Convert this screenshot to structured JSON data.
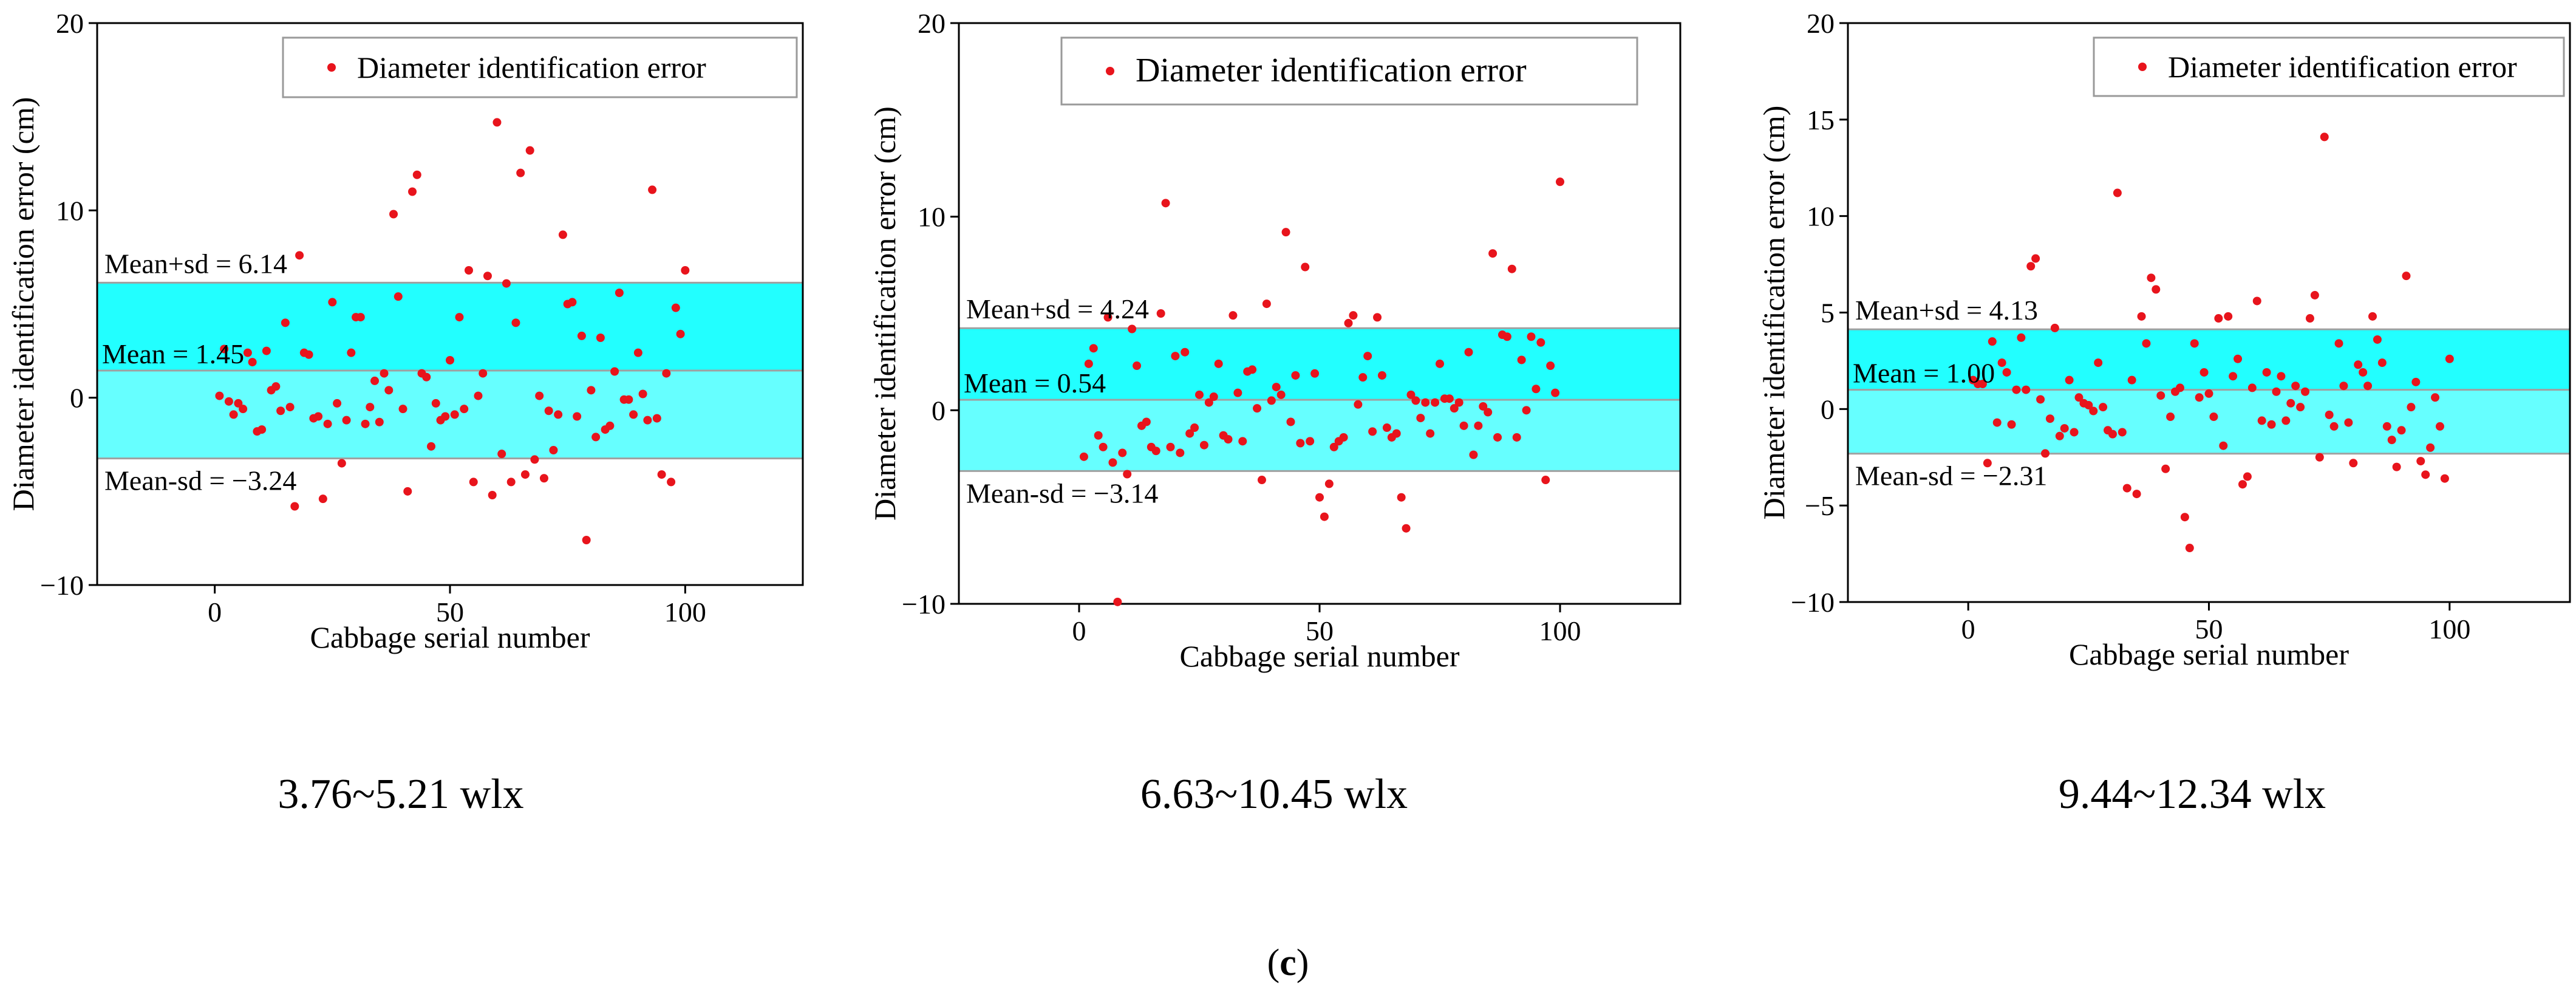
{
  "figure_label": {
    "open": "(",
    "letter": "c",
    "close": ")"
  },
  "colors": {
    "point": "#e8141c",
    "band_upper": "#22ffff",
    "band_lower": "#66ffff",
    "line": "#a0a0a0",
    "axis": "#000000"
  },
  "chart_data": [
    {
      "type": "scatter",
      "caption": "3.76~5.21 wlx",
      "xlabel": "Cabbage serial number",
      "ylabel": "Diameter identification error (cm)",
      "legend": "Diameter identification error",
      "legend_position": "top-right",
      "xlim": [
        -25,
        125
      ],
      "ylim": [
        -10,
        20
      ],
      "xticks": [
        0,
        50,
        100
      ],
      "yticks": [
        -10,
        0,
        10,
        20
      ],
      "ytick_labels": [
        "−10",
        "0",
        "10",
        "20"
      ],
      "mean": 1.45,
      "upper": 6.14,
      "lower": -3.24,
      "mean_label": "Mean = 1.45",
      "upper_label": "Mean+sd = 6.14",
      "lower_label": "Mean-sd = −3.24",
      "x": [
        1,
        2,
        3,
        4,
        5,
        6,
        7,
        8,
        9,
        10,
        11,
        12,
        13,
        14,
        15,
        16,
        17,
        18,
        19,
        20,
        21,
        22,
        23,
        24,
        25,
        26,
        27,
        28,
        29,
        30,
        31,
        32,
        33,
        34,
        35,
        36,
        37,
        38,
        39,
        40,
        41,
        42,
        43,
        44,
        45,
        46,
        47,
        48,
        49,
        50,
        51,
        52,
        53,
        54,
        55,
        56,
        57,
        58,
        59,
        60,
        61,
        62,
        63,
        64,
        65,
        66,
        67,
        68,
        69,
        70,
        71,
        72,
        73,
        74,
        75,
        76,
        77,
        78,
        79,
        80,
        81,
        82,
        83,
        84,
        85,
        86,
        87,
        88,
        89,
        90,
        91,
        92,
        93,
        94,
        95,
        96,
        97,
        98,
        99,
        100
      ],
      "y": [
        0.1,
        2.6,
        -0.2,
        -0.9,
        -0.3,
        -0.6,
        2.4,
        1.9,
        -1.8,
        -1.7,
        2.5,
        0.4,
        0.6,
        -0.7,
        4.0,
        -0.5,
        -5.8,
        7.6,
        2.4,
        2.3,
        -1.1,
        -1.0,
        -5.4,
        -1.4,
        5.1,
        -0.3,
        -3.5,
        -1.2,
        2.4,
        4.3,
        4.3,
        -1.4,
        -0.5,
        0.9,
        -1.3,
        1.3,
        0.4,
        9.8,
        5.4,
        -0.6,
        -5.0,
        11.0,
        11.9,
        1.3,
        1.1,
        -2.6,
        -0.3,
        -1.2,
        -1.0,
        2.0,
        -0.9,
        4.3,
        -0.6,
        6.8,
        -4.5,
        0.1,
        1.3,
        6.5,
        -5.2,
        14.7,
        -3.0,
        6.1,
        -4.5,
        4.0,
        12.0,
        -4.1,
        13.2,
        -3.3,
        0.1,
        -4.3,
        -0.7,
        -2.8,
        -0.9,
        8.7,
        5.0,
        5.1,
        -1.0,
        3.3,
        -7.6,
        0.4,
        -2.1,
        3.2,
        -1.7,
        -1.5,
        1.4,
        5.6,
        -0.1,
        -0.1,
        -0.9,
        2.4,
        0.2,
        -1.2,
        11.1,
        -1.1,
        -4.1,
        1.3,
        -4.5,
        4.8,
        3.4,
        6.8
      ]
    },
    {
      "type": "scatter",
      "caption": "6.63~10.45 wlx",
      "xlabel": "Cabbage serial number",
      "ylabel": "Diameter identification error (cm)",
      "legend": "Diameter identification error",
      "legend_position": "top-right",
      "xlim": [
        -25,
        125
      ],
      "ylim": [
        -10,
        20
      ],
      "xticks": [
        0,
        50,
        100
      ],
      "yticks": [
        -10,
        0,
        10,
        20
      ],
      "ytick_labels": [
        "−10",
        "0",
        "10",
        "20"
      ],
      "mean": 0.54,
      "upper": 4.24,
      "lower": -3.14,
      "mean_label": "Mean = 0.54",
      "upper_label": "Mean+sd = 4.24",
      "lower_label": "Mean-sd = −3.14",
      "x": [
        1,
        2,
        3,
        4,
        5,
        6,
        7,
        8,
        9,
        10,
        11,
        12,
        13,
        14,
        15,
        16,
        17,
        18,
        19,
        20,
        21,
        22,
        23,
        24,
        25,
        26,
        27,
        28,
        29,
        30,
        31,
        32,
        33,
        34,
        35,
        36,
        37,
        38,
        39,
        40,
        41,
        42,
        43,
        44,
        45,
        46,
        47,
        48,
        49,
        50,
        51,
        52,
        53,
        54,
        55,
        56,
        57,
        58,
        59,
        60,
        61,
        62,
        63,
        64,
        65,
        66,
        67,
        68,
        69,
        70,
        71,
        72,
        73,
        74,
        75,
        76,
        77,
        78,
        79,
        80,
        81,
        82,
        83,
        84,
        85,
        86,
        87,
        88,
        89,
        90,
        91,
        92,
        93,
        94,
        95,
        96,
        97,
        98,
        99,
        100
      ],
      "y": [
        -2.4,
        2.4,
        3.2,
        -1.3,
        -1.9,
        4.8,
        -2.7,
        -9.9,
        -2.2,
        -3.3,
        4.2,
        2.3,
        -0.8,
        -0.6,
        -1.9,
        -2.1,
        5.0,
        10.7,
        -1.9,
        2.8,
        -2.2,
        3.0,
        -1.2,
        -0.9,
        0.8,
        -1.8,
        0.4,
        0.7,
        2.4,
        -1.3,
        -1.5,
        4.9,
        0.9,
        -1.6,
        2.0,
        2.1,
        0.1,
        -3.6,
        5.5,
        0.5,
        1.2,
        0.8,
        9.2,
        -0.6,
        1.8,
        -1.7,
        7.4,
        -1.6,
        1.9,
        -4.5,
        -5.5,
        -3.8,
        -1.9,
        -1.6,
        -1.4,
        4.5,
        4.9,
        0.3,
        1.7,
        2.8,
        -1.1,
        4.8,
        1.8,
        -0.9,
        -1.4,
        -1.2,
        -4.5,
        -6.1,
        0.8,
        0.5,
        -0.4,
        0.4,
        -1.2,
        0.4,
        2.4,
        0.6,
        0.6,
        0.1,
        0.4,
        -0.8,
        3.0,
        -2.3,
        -0.8,
        0.2,
        -0.1,
        8.1,
        -1.4,
        3.9,
        3.8,
        7.3,
        -1.4,
        2.6,
        0.0,
        3.8,
        1.1,
        3.5,
        -3.6,
        2.3,
        0.9,
        11.8
      ]
    },
    {
      "type": "scatter",
      "caption": "9.44~12.34 wlx",
      "xlabel": "Cabbage serial number",
      "ylabel": "Diameter identification error (cm)",
      "legend": "Diameter identification error",
      "legend_position": "top-right",
      "xlim": [
        -25,
        125
      ],
      "ylim": [
        -10,
        20
      ],
      "xticks": [
        0,
        50,
        100
      ],
      "yticks": [
        -10,
        -5,
        0,
        5,
        10,
        15,
        20
      ],
      "ytick_labels": [
        "−10",
        "−5",
        "0",
        "5",
        "10",
        "15",
        "20"
      ],
      "mean": 1.0,
      "upper": 4.13,
      "lower": -2.31,
      "mean_label": "Mean = 1.00",
      "upper_label": "Mean+sd = 4.13",
      "lower_label": "Mean-sd = −2.31",
      "x": [
        1,
        2,
        3,
        4,
        5,
        6,
        7,
        8,
        9,
        10,
        11,
        12,
        13,
        14,
        15,
        16,
        17,
        18,
        19,
        20,
        21,
        22,
        23,
        24,
        25,
        26,
        27,
        28,
        29,
        30,
        31,
        32,
        33,
        34,
        35,
        36,
        37,
        38,
        39,
        40,
        41,
        42,
        43,
        44,
        45,
        46,
        47,
        48,
        49,
        50,
        51,
        52,
        53,
        54,
        55,
        56,
        57,
        58,
        59,
        60,
        61,
        62,
        63,
        64,
        65,
        66,
        67,
        68,
        69,
        70,
        71,
        72,
        73,
        74,
        75,
        76,
        77,
        78,
        79,
        80,
        81,
        82,
        83,
        84,
        85,
        86,
        87,
        88,
        89,
        90,
        91,
        92,
        93,
        94,
        95,
        96,
        97,
        98,
        99,
        100
      ],
      "y": [
        1.5,
        1.3,
        1.3,
        -2.8,
        3.5,
        -0.7,
        2.4,
        1.9,
        -0.8,
        1.0,
        3.7,
        1.0,
        7.4,
        7.8,
        0.5,
        -2.3,
        -0.5,
        4.2,
        -1.4,
        -1.0,
        1.5,
        -1.2,
        0.6,
        0.3,
        0.2,
        -0.1,
        2.4,
        0.1,
        -1.1,
        -1.3,
        11.2,
        -1.2,
        -4.1,
        1.5,
        -4.4,
        4.8,
        3.4,
        6.8,
        6.2,
        0.7,
        -3.1,
        -0.4,
        0.9,
        1.1,
        -5.6,
        -7.2,
        3.4,
        0.6,
        1.9,
        0.8,
        -0.4,
        4.7,
        -1.9,
        4.8,
        1.7,
        2.6,
        -3.9,
        -3.5,
        1.1,
        5.6,
        -0.6,
        1.9,
        -0.8,
        0.9,
        1.7,
        -0.6,
        0.3,
        1.2,
        0.1,
        0.9,
        4.7,
        5.9,
        -2.5,
        14.1,
        -0.3,
        -0.9,
        3.4,
        1.2,
        -0.7,
        -2.8,
        2.3,
        1.9,
        1.2,
        4.8,
        3.6,
        2.4,
        -0.9,
        -1.6,
        -3.0,
        -1.1,
        6.9,
        0.1,
        1.4,
        -2.7,
        -3.4,
        -2.0,
        0.6,
        -0.9,
        -3.6,
        2.6
      ]
    }
  ]
}
